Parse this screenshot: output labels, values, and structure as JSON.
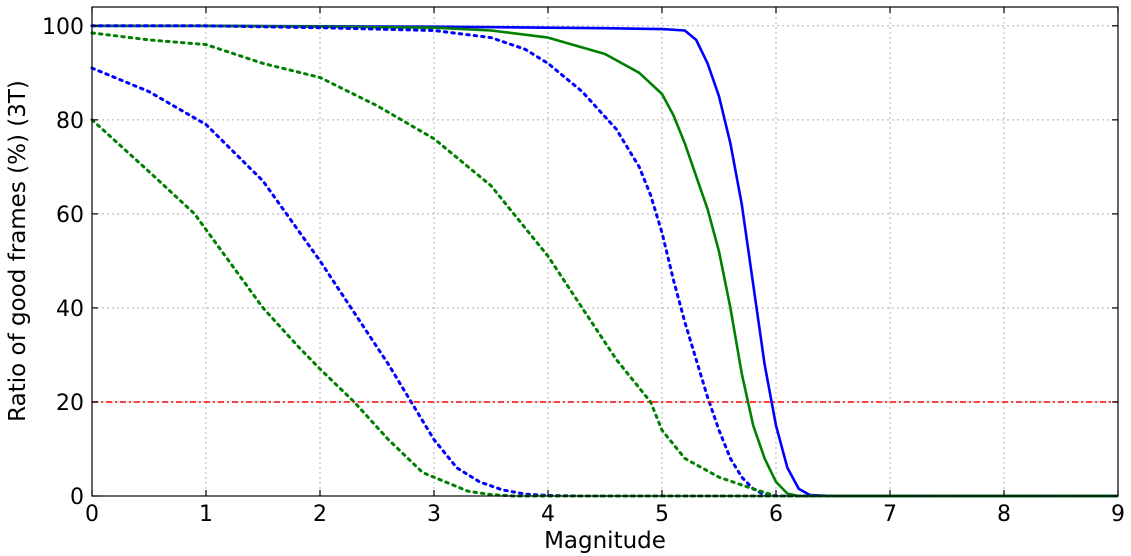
{
  "chart_data": {
    "type": "line",
    "title": "",
    "xlabel": "Magnitude",
    "ylabel": "Ratio of good frames (%) (3T)",
    "xlim": [
      0,
      9
    ],
    "ylim": [
      0,
      104
    ],
    "xticks": [
      0,
      1,
      2,
      3,
      4,
      5,
      6,
      7,
      8,
      9
    ],
    "yticks": [
      0,
      20,
      40,
      60,
      80,
      100
    ],
    "grid": true,
    "legend": "none",
    "series": [
      {
        "color": "#0000ff",
        "style": "solid",
        "x": [
          0,
          1,
          2,
          3,
          4,
          4.5,
          5,
          5.2,
          5.3,
          5.4,
          5.5,
          5.6,
          5.7,
          5.8,
          5.9,
          6.0,
          6.1,
          6.2,
          6.3,
          6.5,
          9
        ],
        "y": [
          100,
          100,
          99.9,
          99.8,
          99.6,
          99.5,
          99.3,
          99,
          97,
          92,
          85,
          75,
          62,
          45,
          28,
          15,
          6,
          1.5,
          0.2,
          0,
          0
        ]
      },
      {
        "color": "#008000",
        "style": "solid",
        "x": [
          0,
          1,
          2,
          3,
          3.5,
          4,
          4.5,
          4.8,
          5.0,
          5.1,
          5.2,
          5.3,
          5.4,
          5.5,
          5.6,
          5.7,
          5.8,
          5.9,
          6.0,
          6.1,
          6.2,
          9
        ],
        "y": [
          100,
          100,
          99.8,
          99.6,
          99,
          97.5,
          94,
          90,
          85.5,
          81,
          75,
          68,
          61,
          52,
          40,
          26,
          15,
          8,
          3,
          0.5,
          0,
          0
        ]
      },
      {
        "color": "#0000ff",
        "style": "dotted",
        "x": [
          0,
          1,
          2,
          3,
          3.5,
          3.8,
          4.0,
          4.3,
          4.6,
          4.8,
          4.9,
          5.0,
          5.1,
          5.2,
          5.3,
          5.4,
          5.5,
          5.6,
          5.7,
          5.8,
          5.9,
          6.0,
          9
        ],
        "y": [
          100,
          100,
          99.6,
          99,
          97.5,
          95,
          92,
          86,
          78,
          70,
          64,
          56,
          46,
          37,
          29,
          21,
          14,
          8,
          4,
          1.5,
          0.3,
          0,
          0
        ]
      },
      {
        "color": "#008000",
        "style": "dotted",
        "x": [
          0,
          0.5,
          1,
          1.5,
          2,
          2.5,
          3,
          3.5,
          4,
          4.3,
          4.6,
          4.9,
          5.0,
          5.2,
          5.5,
          5.8,
          6.0,
          9
        ],
        "y": [
          98.5,
          97,
          96,
          92,
          89,
          83,
          76,
          66,
          51,
          40,
          29,
          20,
          14,
          8,
          4,
          1.5,
          0,
          0
        ]
      },
      {
        "color": "#0000ff",
        "style": "dotted",
        "x": [
          0,
          0.5,
          1,
          1.5,
          2,
          2.3,
          2.6,
          2.8,
          3.0,
          3.2,
          3.4,
          3.6,
          3.8,
          4.0,
          4.3,
          9
        ],
        "y": [
          91,
          86,
          79,
          67,
          50,
          39,
          28,
          20,
          12,
          6,
          3,
          1.3,
          0.4,
          0.1,
          0,
          0
        ]
      },
      {
        "color": "#008000",
        "style": "dotted",
        "x": [
          0,
          0.5,
          0.9,
          1.2,
          1.5,
          1.8,
          2.0,
          2.3,
          2.6,
          2.9,
          3.1,
          3.3,
          3.5,
          3.7,
          9
        ],
        "y": [
          80,
          69,
          60,
          50,
          40,
          32,
          27,
          20,
          12,
          5,
          3,
          1,
          0.3,
          0,
          0
        ]
      },
      {
        "color": "#ff0000",
        "style": "dashdot",
        "x": [
          0,
          9
        ],
        "y": [
          20,
          20
        ]
      }
    ]
  }
}
